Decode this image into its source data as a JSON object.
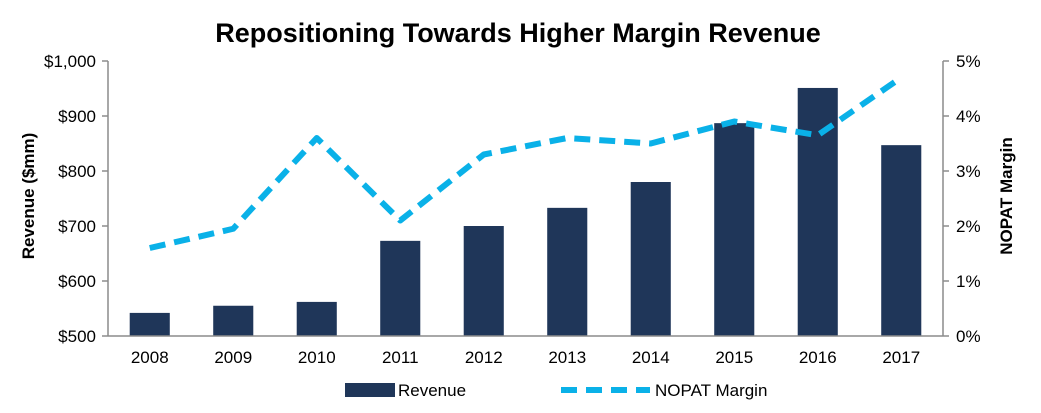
{
  "chart_data": {
    "type": "bar",
    "title": "Repositioning Towards Higher Margin Revenue",
    "categories": [
      "2008",
      "2009",
      "2010",
      "2011",
      "2012",
      "2013",
      "2014",
      "2015",
      "2016",
      "2017"
    ],
    "series": [
      {
        "name": "Revenue",
        "type": "bar",
        "axis": "left",
        "color": "#1f3659",
        "values": [
          542,
          555,
          562,
          673,
          700,
          733,
          780,
          887,
          951,
          847
        ]
      },
      {
        "name": "NOPAT Margin",
        "type": "line",
        "style": "dashed",
        "axis": "right",
        "color": "#0ab1e8",
        "values": [
          1.6,
          1.95,
          3.6,
          2.1,
          3.3,
          3.6,
          3.5,
          3.9,
          3.65,
          4.7
        ]
      }
    ],
    "ylabel": "Revenue ($mm)",
    "ylim": [
      500,
      1000
    ],
    "yticks": [
      500,
      600,
      700,
      800,
      900,
      1000
    ],
    "ytick_labels": [
      "$500",
      "$600",
      "$700",
      "$800",
      "$900",
      "$1,000"
    ],
    "y2label": "NOPAT Margin",
    "y2lim": [
      0,
      5
    ],
    "y2ticks": [
      0,
      1,
      2,
      3,
      4,
      5
    ],
    "y2tick_labels": [
      "0%",
      "1%",
      "2%",
      "3%",
      "4%",
      "5%"
    ],
    "grid": false,
    "legend": "bottom"
  }
}
